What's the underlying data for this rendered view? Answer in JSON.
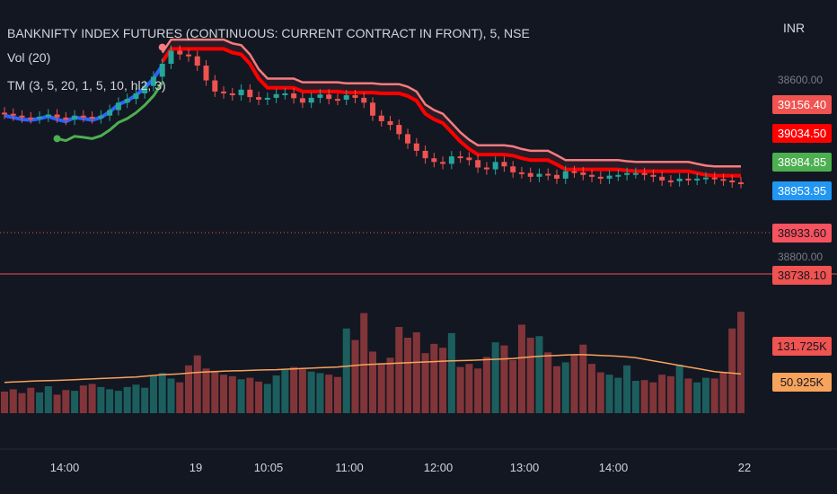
{
  "header": {
    "title": "BANKNIFTY INDEX FUTURES (CONTINUOUS: CURRENT CONTRACT IN FRONT), 5, NSE",
    "vol_label": "Vol (20)",
    "indicator_label": "TM (3, 5, 20, 1, 5, 10, hl2, 3)",
    "currency": "INR"
  },
  "price_tags": [
    {
      "label": "39156.40",
      "bg": "#f05350",
      "fg": "#ffffff",
      "value": 39156.4
    },
    {
      "label": "39034.50",
      "bg": "#ff0000",
      "fg": "#ffffff",
      "value": 39034.5
    },
    {
      "label": "38984.85",
      "bg": "#4caf50",
      "fg": "#ffffff",
      "value": 38984.85
    },
    {
      "label": "38953.95",
      "bg": "#2196f3",
      "fg": "#ffffff",
      "value": 38953.95
    },
    {
      "label": "38933.60",
      "bg": "#f7525f",
      "fg": "#131722",
      "value": 38933.6
    },
    {
      "label": "38738.10",
      "bg": "#f05350",
      "fg": "#131722",
      "value": 38738.1
    }
  ],
  "volume_tags": [
    {
      "label": "131.725K",
      "bg": "#f05350",
      "fg": "#131722"
    },
    {
      "label": "50.925K",
      "bg": "#f7a35c",
      "fg": "#131722"
    }
  ],
  "price_axis_ticks": [
    "38600.00",
    "38800.00"
  ],
  "x_axis_ticks": [
    "14:00",
    "19",
    "10:05",
    "11:00",
    "12:00",
    "13:00",
    "14:00",
    "22"
  ],
  "colors": {
    "up": "#26a69a",
    "down": "#ef5350",
    "trail_red": "#ff0000",
    "trail_blue": "#2962ff",
    "trail_green": "#4caf50",
    "upper_band": "#f77c80",
    "vol_ma": "#f7a35c",
    "hline": "#f05350"
  },
  "chart_data": {
    "type": "candlestick",
    "title": "BANKNIFTY INDEX FUTURES (CONTINUOUS: CURRENT CONTRACT IN FRONT), 5, NSE",
    "interval": "5",
    "y_range": [
      38700,
      39330
    ],
    "last_price": 38933.6,
    "horizontal_line": 38738.1,
    "close": [
      39120,
      39115,
      39110,
      39108,
      39112,
      39118,
      39110,
      39104,
      39115,
      39112,
      39108,
      39115,
      39130,
      39150,
      39160,
      39175,
      39195,
      39220,
      39255,
      39290,
      39280,
      39275,
      39250,
      39210,
      39180,
      39175,
      39170,
      39185,
      39165,
      39158,
      39163,
      39173,
      39175,
      39162,
      39150,
      39163,
      39172,
      39160,
      39158,
      39170,
      39163,
      39150,
      39115,
      39100,
      39090,
      39065,
      39040,
      39020,
      39000,
      38990,
      38985,
      39005,
      39002,
      38995,
      38975,
      38970,
      38990,
      38978,
      38962,
      38960,
      38950,
      38958,
      38955,
      38945,
      38965,
      38962,
      38955,
      38950,
      38945,
      38953,
      38955,
      38960,
      38960,
      38955,
      38950,
      38940,
      38938,
      38945,
      38942,
      38945,
      38948,
      38944,
      38940,
      38935,
      38933.6
    ],
    "volume_k": [
      28,
      31,
      26,
      33,
      27,
      35,
      24,
      30,
      29,
      36,
      38,
      34,
      31,
      29,
      34,
      37,
      33,
      48,
      52,
      45,
      40,
      62,
      75,
      58,
      55,
      50,
      48,
      44,
      46,
      41,
      38,
      49,
      56,
      60,
      57,
      54,
      52,
      50,
      47,
      110,
      95,
      130,
      80,
      65,
      72,
      112,
      98,
      105,
      78,
      90,
      85,
      104,
      60,
      64,
      58,
      73,
      92,
      88,
      69,
      115,
      98,
      100,
      79,
      61,
      66,
      76,
      89,
      64,
      53,
      50,
      46,
      62,
      42,
      43,
      40,
      50,
      48,
      63,
      45,
      40,
      46,
      45,
      53,
      110,
      131.725
    ],
    "volume_ma_k": [
      40,
      40.5,
      41,
      41.5,
      42,
      42.3,
      42.6,
      43,
      43.5,
      44,
      44.5,
      45,
      45.5,
      46,
      46.5,
      47,
      48,
      49,
      50,
      50.5,
      51,
      52,
      53,
      53.5,
      54,
      54.5,
      55,
      55.2,
      55.5,
      56,
      56.2,
      56.5,
      57,
      57.5,
      58,
      58.5,
      59,
      59.5,
      60,
      61,
      62,
      63,
      63.5,
      64,
      64.5,
      65,
      65.5,
      66,
      66.5,
      67,
      67.5,
      68,
      68.2,
      68.5,
      69,
      69.5,
      70,
      70.5,
      71,
      72,
      73,
      74,
      74.5,
      75,
      75.5,
      76,
      76,
      75.5,
      75,
      74.5,
      74,
      73,
      72,
      70,
      68,
      66,
      64,
      62,
      60,
      58,
      56,
      54,
      53,
      52,
      50.925
    ],
    "upper_band": 39156.4,
    "trail": 39034.5,
    "support": 38984.85,
    "signal": 38953.95,
    "x_ticks": [
      "14:00",
      "19",
      "10:05",
      "11:00",
      "12:00",
      "13:00",
      "14:00",
      "22"
    ],
    "legend": [
      "Vol (20)",
      "TM (3, 5, 20, 1, 5, 10, hl2, 3)"
    ],
    "grid": false
  }
}
